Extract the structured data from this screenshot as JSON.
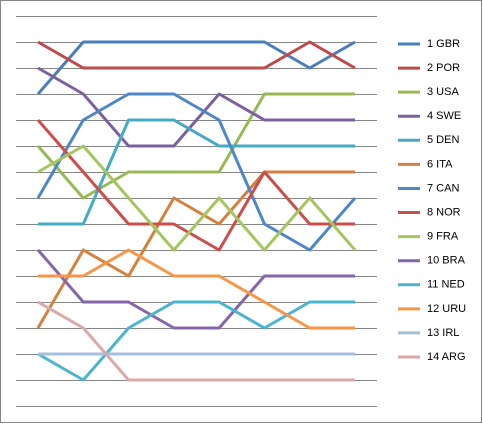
{
  "chart_data": {
    "type": "line",
    "categories": [
      null,
      null,
      null,
      null,
      null,
      null,
      null,
      null
    ],
    "ylim": [
      15,
      0
    ],
    "yticks": [
      0,
      1,
      2,
      3,
      4,
      5,
      6,
      7,
      8,
      9,
      10,
      11,
      12,
      13,
      14,
      15
    ],
    "grid": true,
    "legend": "right",
    "series": [
      {
        "name": "1 GBR",
        "color": "#4a7ebb",
        "values": [
          3,
          1,
          1,
          1,
          1,
          1,
          2,
          1
        ]
      },
      {
        "name": "2 POR",
        "color": "#be4b48",
        "values": [
          1,
          2,
          2,
          2,
          2,
          2,
          1,
          2
        ]
      },
      {
        "name": "3 USA",
        "color": "#98b954",
        "values": [
          5,
          7,
          6,
          6,
          6,
          3,
          3,
          3
        ]
      },
      {
        "name": "4 SWE",
        "color": "#7d60a0",
        "values": [
          2,
          3,
          5,
          5,
          3,
          4,
          4,
          4
        ]
      },
      {
        "name": "5 DEN",
        "color": "#46aac5",
        "values": [
          8,
          8,
          4,
          4,
          5,
          5,
          5,
          5
        ]
      },
      {
        "name": "6 ITA",
        "color": "#d5803e",
        "values": [
          12,
          9,
          10,
          7,
          8,
          6,
          6,
          6
        ]
      },
      {
        "name": "7 CAN",
        "color": "#4d87c7",
        "values": [
          7,
          4,
          3,
          3,
          4,
          8,
          9,
          7
        ]
      },
      {
        "name": "8 NOR",
        "color": "#cc4e4a",
        "values": [
          4,
          6,
          8,
          8,
          9,
          6,
          8,
          8
        ]
      },
      {
        "name": "9 FRA",
        "color": "#a5c65f",
        "values": [
          6,
          5,
          7,
          9,
          7,
          9,
          7,
          9
        ]
      },
      {
        "name": "10 BRA",
        "color": "#8566ab",
        "values": [
          9,
          11,
          11,
          12,
          12,
          10,
          10,
          10
        ]
      },
      {
        "name": "11 NED",
        "color": "#4bb4cf",
        "values": [
          13,
          14,
          12,
          11,
          11,
          12,
          11,
          11
        ]
      },
      {
        "name": "12 URU",
        "color": "#f79646",
        "values": [
          10,
          10,
          9,
          10,
          10,
          11,
          12,
          12
        ]
      },
      {
        "name": "13 IRL",
        "color": "#a7bfde",
        "values": [
          13,
          13,
          13,
          13,
          13,
          13,
          13,
          13
        ]
      },
      {
        "name": "14 ARG",
        "color": "#d9aaa8",
        "values": [
          11,
          12,
          14,
          14,
          14,
          14,
          14,
          14
        ]
      }
    ]
  }
}
